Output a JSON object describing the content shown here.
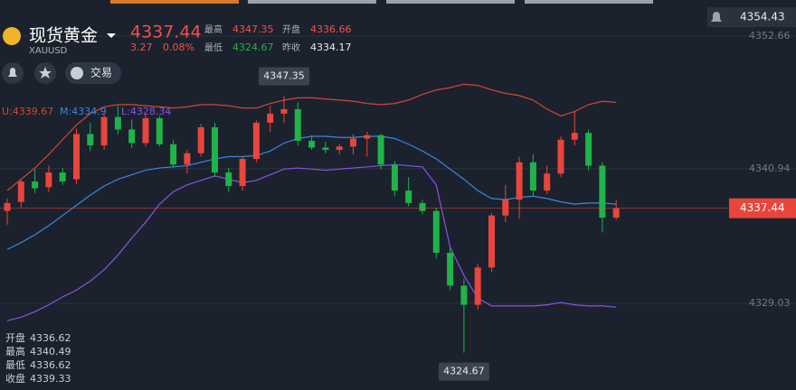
{
  "header": {
    "title": "现货黄金",
    "code": "XAUUSD",
    "price": 4337.44,
    "change": 3.27,
    "change_pct": "0.08%",
    "stats": [
      {
        "label": "最高",
        "value": 4347.35
      },
      {
        "label": "开盘",
        "value": 4336.66
      },
      {
        "label": "最低",
        "value": 4324.67
      },
      {
        "label": "昨收",
        "value": 4334.17
      }
    ]
  },
  "toolbar": {
    "trade": "交易"
  },
  "ohlc_panel": [
    {
      "label": "开盘",
      "value": 4336.62
    },
    {
      "label": "最高",
      "value": 4340.49
    },
    {
      "label": "最低",
      "value": 4336.62
    },
    {
      "label": "收盘",
      "value": 4339.33
    }
  ],
  "chart_data": {
    "type": "candlestick",
    "up_color": "#e8453c",
    "down_color": "#1fb34a",
    "open": [
      4337.2,
      4338.0,
      4339.8,
      4339.3,
      4340.6,
      4340.0,
      4344.0,
      4343.0,
      4345.5,
      4344.4,
      4343.2,
      4345.4,
      4343.1,
      4341.3,
      4342.3,
      4344.6,
      4340.6,
      4339.4,
      4341.8,
      4345.0,
      4345.8,
      4346.2,
      4343.4,
      4342.8,
      4342.6,
      4342.9,
      4343.6,
      4343.9,
      4341.3,
      4339.0,
      4337.9,
      4337.2,
      4333.5,
      4330.6,
      4328.9,
      4332.2,
      4336.8,
      4338.2,
      4341.5,
      4339.0,
      4340.5,
      4343.5,
      4344.1,
      4341.2,
      4336.6
    ],
    "high": [
      4338.3,
      4340.0,
      4340.9,
      4341.2,
      4341.0,
      4344.5,
      4345.0,
      4345.8,
      4346.5,
      4345.3,
      4345.7,
      4345.6,
      4343.5,
      4342.6,
      4344.9,
      4345.0,
      4341.0,
      4342.0,
      4345.2,
      4346.5,
      4347.35,
      4346.8,
      4343.9,
      4343.3,
      4343.1,
      4344.0,
      4344.2,
      4344.0,
      4341.6,
      4340.2,
      4338.2,
      4337.5,
      4334.0,
      4331.2,
      4332.5,
      4337.0,
      4339.5,
      4342.0,
      4342.2,
      4341.2,
      4343.8,
      4346.0,
      4344.4,
      4341.5,
      4338.2
    ],
    "low": [
      4336.0,
      4337.5,
      4338.8,
      4338.9,
      4339.5,
      4339.6,
      4342.5,
      4342.6,
      4344.0,
      4342.8,
      4342.9,
      4342.9,
      4341.0,
      4340.5,
      4342.0,
      4340.2,
      4338.9,
      4339.0,
      4341.5,
      4344.2,
      4345.0,
      4343.0,
      4342.6,
      4342.3,
      4342.2,
      4342.2,
      4342.0,
      4340.9,
      4338.5,
      4337.6,
      4336.9,
      4333.0,
      4330.2,
      4324.67,
      4328.5,
      4331.8,
      4336.2,
      4336.5,
      4338.5,
      4338.7,
      4340.2,
      4343.0,
      4340.8,
      4335.3,
      4336.4
    ],
    "close": [
      4337.9,
      4339.8,
      4339.2,
      4340.6,
      4339.8,
      4344.0,
      4343.0,
      4345.5,
      4344.4,
      4343.2,
      4345.4,
      4343.1,
      4341.3,
      4342.3,
      4344.6,
      4340.6,
      4339.4,
      4341.8,
      4345.0,
      4345.8,
      4346.2,
      4343.4,
      4342.8,
      4342.6,
      4342.9,
      4343.6,
      4343.9,
      4341.3,
      4339.0,
      4337.9,
      4337.2,
      4333.5,
      4330.6,
      4328.9,
      4332.2,
      4336.8,
      4338.2,
      4341.5,
      4339.0,
      4340.5,
      4343.5,
      4344.1,
      4341.2,
      4336.6,
      4337.44
    ],
    "series": [
      {
        "name": "U:",
        "legend_value": 4339.67,
        "color": "#d0463b",
        "values": [
          4339.0,
          4340.0,
          4341.0,
          4342.2,
          4343.5,
          4344.8,
          4345.8,
          4346.4,
          4346.6,
          4346.6,
          4346.5,
          4346.4,
          4346.3,
          4346.4,
          4346.6,
          4346.6,
          4346.5,
          4346.3,
          4346.3,
          4346.7,
          4347.0,
          4347.2,
          4347.2,
          4347.1,
          4347.0,
          4346.9,
          4346.7,
          4346.6,
          4346.7,
          4347.0,
          4347.5,
          4347.9,
          4348.1,
          4348.4,
          4348.3,
          4347.9,
          4347.6,
          4347.4,
          4347.0,
          4346.2,
          4345.6,
          4346.0,
          4346.6,
          4346.9,
          4346.8
        ]
      },
      {
        "name": "M:",
        "legend_value": 4334.9,
        "color": "#3d86dc",
        "values": [
          4333.8,
          4334.4,
          4335.1,
          4335.9,
          4336.8,
          4337.7,
          4338.6,
          4339.4,
          4340.0,
          4340.4,
          4340.8,
          4341.0,
          4341.1,
          4341.2,
          4341.5,
          4341.8,
          4342.0,
          4342.0,
          4342.1,
          4342.5,
          4343.2,
          4343.6,
          4343.8,
          4343.8,
          4343.7,
          4343.7,
          4343.8,
          4343.8,
          4343.6,
          4343.1,
          4342.5,
          4341.8,
          4340.9,
          4340.0,
          4339.0,
          4338.3,
          4338.2,
          4338.4,
          4338.5,
          4338.3,
          4338.0,
          4337.8,
          4337.9,
          4337.9,
          4337.8
        ]
      },
      {
        "name": "L:",
        "legend_value": 4328.34,
        "color": "#8b52e6",
        "values": [
          4327.5,
          4327.8,
          4328.3,
          4328.9,
          4329.6,
          4330.2,
          4331.0,
          4332.0,
          4333.3,
          4334.8,
          4336.2,
          4337.8,
          4338.9,
          4339.5,
          4339.9,
          4340.3,
          4340.0,
          4339.7,
          4339.9,
          4340.4,
          4340.9,
          4341.0,
          4340.9,
          4340.8,
          4340.9,
          4341.0,
          4341.1,
          4341.2,
          4341.3,
          4341.2,
          4341.1,
          4339.5,
          4334.0,
          4331.5,
          4329.5,
          4328.8,
          4328.8,
          4328.8,
          4328.8,
          4328.9,
          4329.1,
          4328.9,
          4328.8,
          4328.8,
          4328.7
        ]
      }
    ],
    "ylim": [
      4321.37,
      4355.85
    ],
    "yticks": [
      4352.66,
      4340.94,
      4329.03
    ],
    "grid": true,
    "axis_top_label": 4354.43,
    "last_price": 4337.44,
    "high_label": 4347.35,
    "low_label": 4324.67
  }
}
